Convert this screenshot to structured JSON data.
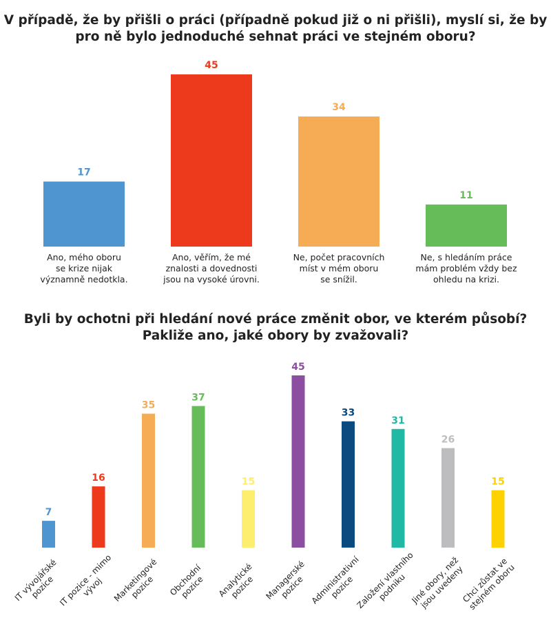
{
  "chart_data": [
    {
      "type": "bar",
      "title_lines": [
        "V případě, že by přišli o práci (případně pokud již o ni přišli), myslí si, že by",
        "pro ně bylo jednoduché sehnat práci ve stejném oboru?"
      ],
      "categories": [
        [
          "Ano, mého oboru",
          "se krize nijak",
          "významně nedotkla."
        ],
        [
          "Ano, věřím, že mé",
          "znalosti a dovednosti",
          "jsou na vysoké úrovni."
        ],
        [
          "Ne, počet pracovních",
          "míst v mém oboru",
          "se snížil."
        ],
        [
          "Ne, s hledáním práce",
          "mám problém vždy bez",
          "ohledu na krizi."
        ]
      ],
      "values": [
        17,
        45,
        34,
        11
      ],
      "colors": [
        "#4f95d0",
        "#ee3a1c",
        "#f6ac54",
        "#67bc5a"
      ],
      "ylim": [
        0,
        45
      ]
    },
    {
      "type": "bar",
      "title_lines": [
        "Byli by ochotni při hledání nové práce změnit obor, ve kterém působí?",
        "Pakliže ano, jaké obory by zvažovali?"
      ],
      "categories": [
        [
          "IT vývojářské",
          "pozice"
        ],
        [
          "IT pozice - mimo",
          "vývoj"
        ],
        [
          "Marketingové",
          "pozice"
        ],
        [
          "Obchodní",
          "pozice"
        ],
        [
          "Analytické",
          "pozice"
        ],
        [
          "Managerské",
          "pozice"
        ],
        [
          "Administrativní",
          "pozice"
        ],
        [
          "Založení vlastního",
          "podniku"
        ],
        [
          "Jiné obory, než",
          "jsou uvedeny"
        ],
        [
          "Chci zůstat ve",
          "stejném oboru"
        ]
      ],
      "values": [
        7,
        16,
        35,
        37,
        15,
        45,
        33,
        31,
        26,
        15
      ],
      "colors": [
        "#4f95d0",
        "#ee3a1c",
        "#f6ac54",
        "#67bc5a",
        "#fdee70",
        "#8b4ea0",
        "#0a4a7f",
        "#20b9a3",
        "#bdbdbf",
        "#fed100"
      ],
      "ylim": [
        0,
        45
      ]
    }
  ]
}
